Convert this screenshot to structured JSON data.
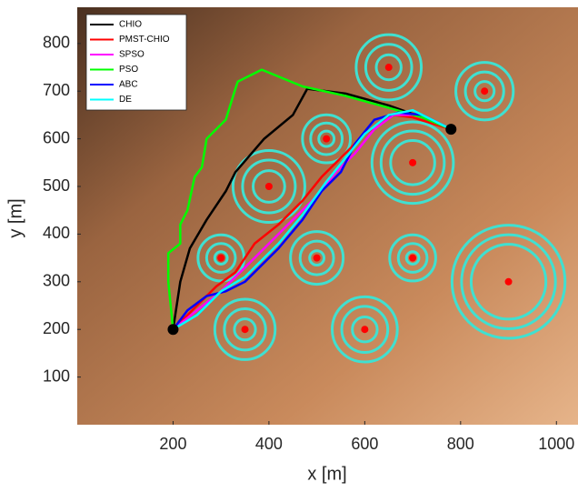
{
  "chart_data": {
    "type": "line",
    "xlabel": "x [m]",
    "ylabel": "y [m]",
    "xlim": [
      0,
      1045
    ],
    "ylim": [
      0,
      876
    ],
    "xticks": [
      200,
      400,
      600,
      800,
      1000
    ],
    "yticks": [
      100,
      200,
      300,
      400,
      500,
      600,
      700,
      800
    ],
    "legend": "upper left",
    "obstacles": [
      {
        "x": 650,
        "y": 750,
        "radii": [
          68,
          48,
          26
        ]
      },
      {
        "x": 850,
        "y": 700,
        "radii": [
          60,
          40,
          20
        ]
      },
      {
        "x": 520,
        "y": 600,
        "radii": [
          50,
          33,
          16
        ]
      },
      {
        "x": 700,
        "y": 550,
        "radii": [
          85,
          66,
          46
        ]
      },
      {
        "x": 400,
        "y": 500,
        "radii": [
          75,
          55,
          33
        ]
      },
      {
        "x": 300,
        "y": 350,
        "radii": [
          48,
          30,
          13
        ]
      },
      {
        "x": 500,
        "y": 350,
        "radii": [
          55,
          35,
          15
        ]
      },
      {
        "x": 700,
        "y": 350,
        "radii": [
          48,
          30,
          13
        ]
      },
      {
        "x": 900,
        "y": 300,
        "radii": [
          118,
          98,
          78
        ]
      },
      {
        "x": 350,
        "y": 200,
        "radii": [
          63,
          43,
          22
        ]
      },
      {
        "x": 600,
        "y": 200,
        "radii": [
          68,
          48,
          26
        ]
      }
    ],
    "series": [
      {
        "name": "CHIO",
        "color": "#000000",
        "x": [
          200,
          215,
          235,
          270,
          310,
          330,
          390,
          450,
          480,
          560,
          650,
          720,
          780
        ],
        "values": [
          200,
          300,
          370,
          430,
          490,
          530,
          600,
          650,
          705,
          695,
          670,
          645,
          620
        ]
      },
      {
        "name": "PMST-CHIO",
        "color": "#ff0000",
        "x": [
          200,
          240,
          290,
          330,
          370,
          420,
          470,
          510,
          550,
          600,
          660,
          700,
          780
        ],
        "values": [
          200,
          240,
          290,
          320,
          380,
          420,
          470,
          520,
          560,
          610,
          650,
          645,
          620
        ]
      },
      {
        "name": "SPSO",
        "color": "#ff00ff",
        "x": [
          200,
          250,
          300,
          350,
          400,
          450,
          500,
          540,
          580,
          620,
          660,
          720,
          780
        ],
        "values": [
          200,
          240,
          280,
          330,
          380,
          430,
          480,
          530,
          570,
          620,
          650,
          650,
          620
        ]
      },
      {
        "name": "PSO",
        "color": "#00ff00",
        "x": [
          200,
          190,
          190,
          215,
          215,
          230,
          245,
          260,
          270,
          310,
          330,
          335,
          385,
          470,
          560,
          650,
          720,
          780
        ],
        "values": [
          200,
          300,
          360,
          380,
          420,
          450,
          520,
          540,
          600,
          640,
          705,
          720,
          745,
          710,
          690,
          665,
          645,
          620
        ]
      },
      {
        "name": "ABC",
        "color": "#0000ff",
        "x": [
          200,
          230,
          270,
          310,
          350,
          420,
          470,
          510,
          550,
          580,
          620,
          670,
          720,
          780
        ],
        "values": [
          200,
          240,
          270,
          280,
          300,
          370,
          430,
          490,
          530,
          590,
          640,
          655,
          650,
          620
        ]
      },
      {
        "name": "DE",
        "color": "#00ffff",
        "x": [
          200,
          250,
          300,
          350,
          420,
          470,
          520,
          560,
          600,
          650,
          700,
          780
        ],
        "values": [
          200,
          230,
          280,
          310,
          380,
          440,
          510,
          560,
          610,
          650,
          660,
          620
        ]
      }
    ]
  }
}
